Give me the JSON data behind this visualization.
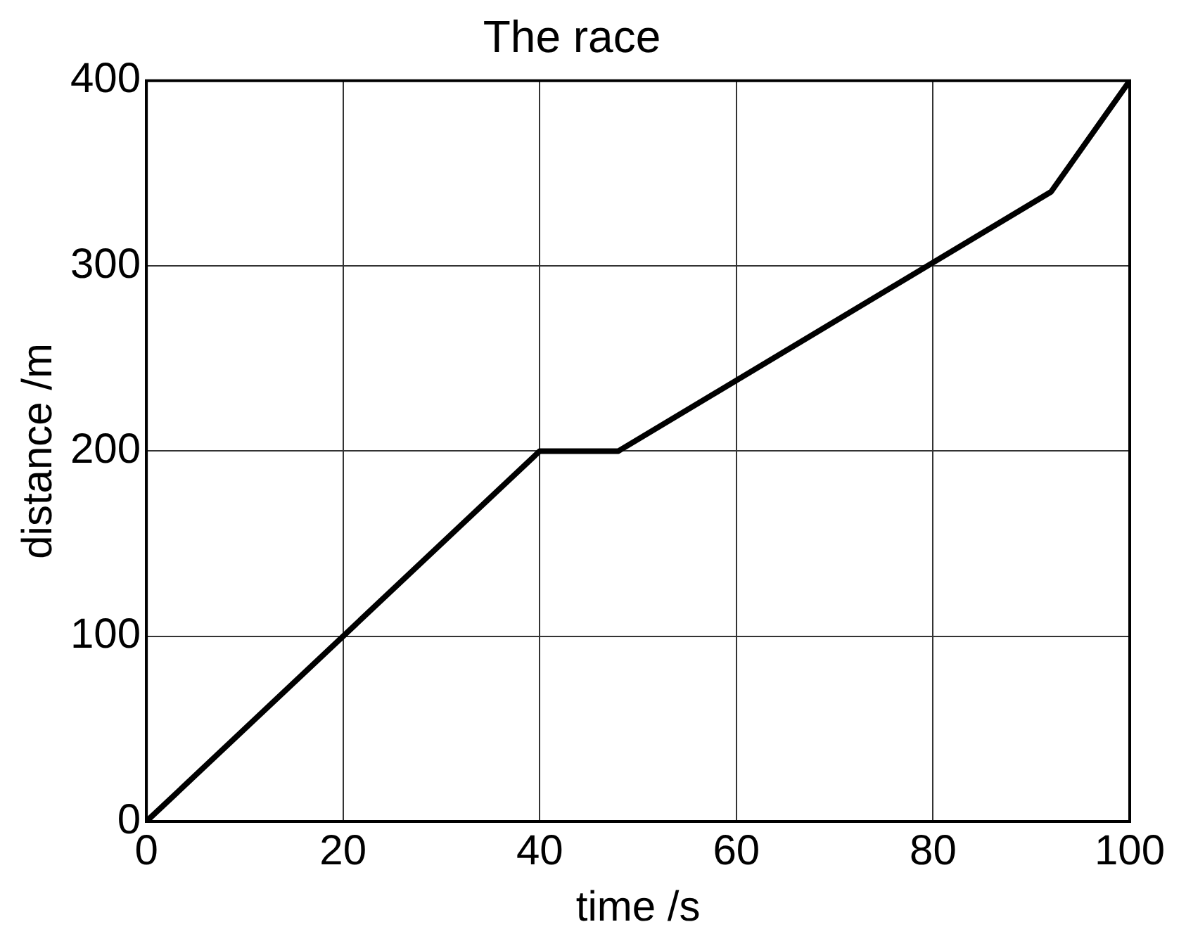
{
  "chart_data": {
    "type": "line",
    "title": "The race",
    "xlabel": "time /s",
    "ylabel": "distance /m",
    "x": [
      0,
      40,
      48,
      92,
      100
    ],
    "series": [
      {
        "color": "#000000",
        "values": [
          0,
          200,
          200,
          340,
          400
        ]
      }
    ],
    "xlim": [
      0,
      100
    ],
    "xticks": [
      0,
      20,
      40,
      60,
      80,
      100
    ],
    "ylim": [
      0,
      400
    ],
    "yticks": [
      0,
      100,
      200,
      300,
      400
    ],
    "grid": true,
    "legend": false,
    "marker": "none",
    "line_style": "solid"
  }
}
